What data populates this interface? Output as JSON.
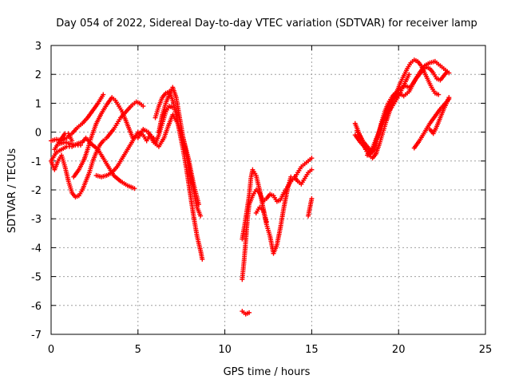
{
  "chart_data": {
    "type": "scatter",
    "title": "Day 054 of 2022, Sidereal Day-to-day VTEC variation (SDTVAR) for receiver lamp",
    "xlabel": "GPS time / hours",
    "ylabel": "SDTVAR / TECUs",
    "xlim": [
      0,
      25
    ],
    "ylim": [
      -7,
      3
    ],
    "xticks": [
      0,
      5,
      10,
      15,
      20,
      25
    ],
    "yticks": [
      3,
      2,
      1,
      0,
      -1,
      -2,
      -3,
      -4,
      -5,
      -6,
      -7
    ],
    "grid": true,
    "marker": "plus",
    "color": "#ff0000",
    "series": [
      {
        "points": [
          [
            0.0,
            -0.3
          ],
          [
            0.3,
            -0.25
          ],
          [
            0.6,
            -0.3
          ],
          [
            0.9,
            -0.2
          ],
          [
            1.2,
            -0.05
          ],
          [
            1.5,
            0.15
          ],
          [
            1.8,
            0.3
          ],
          [
            2.1,
            0.5
          ],
          [
            2.4,
            0.75
          ],
          [
            2.7,
            1.0
          ],
          [
            3.0,
            1.3
          ]
        ]
      },
      {
        "points": [
          [
            0.0,
            -1.0
          ],
          [
            0.3,
            -0.7
          ],
          [
            0.6,
            -0.6
          ],
          [
            0.9,
            -0.5
          ],
          [
            1.2,
            -0.5
          ],
          [
            1.5,
            -0.4
          ],
          [
            1.8,
            -0.35
          ],
          [
            2.0,
            -0.2
          ],
          [
            2.3,
            -0.4
          ],
          [
            2.7,
            -0.6
          ],
          [
            3.0,
            -0.9
          ],
          [
            3.3,
            -1.2
          ],
          [
            3.6,
            -1.5
          ],
          [
            4.0,
            -1.7
          ],
          [
            4.4,
            -1.85
          ],
          [
            4.8,
            -1.95
          ]
        ]
      },
      {
        "points": [
          [
            0.0,
            -1.0
          ],
          [
            0.2,
            -1.3
          ],
          [
            0.4,
            -1.0
          ],
          [
            0.6,
            -0.8
          ],
          [
            0.8,
            -1.2
          ],
          [
            1.0,
            -1.7
          ],
          [
            1.2,
            -2.1
          ],
          [
            1.4,
            -2.25
          ],
          [
            1.6,
            -2.2
          ],
          [
            1.8,
            -2.0
          ],
          [
            2.0,
            -1.7
          ],
          [
            2.2,
            -1.4
          ],
          [
            2.4,
            -1.0
          ],
          [
            2.6,
            -0.7
          ],
          [
            2.8,
            -0.45
          ],
          [
            3.0,
            -0.3
          ],
          [
            3.2,
            -0.2
          ],
          [
            3.4,
            -0.05
          ],
          [
            3.6,
            0.1
          ],
          [
            3.8,
            0.3
          ],
          [
            4.0,
            0.5
          ],
          [
            4.3,
            0.7
          ],
          [
            4.6,
            0.9
          ],
          [
            4.9,
            1.05
          ],
          [
            5.1,
            1.0
          ],
          [
            5.3,
            0.9
          ]
        ]
      },
      {
        "points": [
          [
            2.6,
            -1.5
          ],
          [
            2.9,
            -1.55
          ],
          [
            3.2,
            -1.5
          ],
          [
            3.5,
            -1.4
          ],
          [
            3.8,
            -1.2
          ],
          [
            4.1,
            -0.9
          ],
          [
            4.4,
            -0.6
          ],
          [
            4.7,
            -0.3
          ],
          [
            5.0,
            0.0
          ],
          [
            5.3,
            -0.1
          ],
          [
            5.5,
            -0.3
          ],
          [
            5.7,
            -0.1
          ],
          [
            5.9,
            -0.2
          ],
          [
            6.0,
            -0.4
          ],
          [
            6.2,
            -0.1
          ],
          [
            6.4,
            0.3
          ],
          [
            6.6,
            0.7
          ],
          [
            6.8,
            0.9
          ],
          [
            7.0,
            0.85
          ]
        ]
      },
      {
        "points": [
          [
            0.5,
            -0.4
          ],
          [
            0.8,
            -0.35
          ],
          [
            1.1,
            -0.4
          ],
          [
            1.4,
            -0.45
          ],
          [
            1.7,
            -0.45
          ]
        ]
      },
      {
        "points": [
          [
            0.2,
            -0.6
          ],
          [
            0.5,
            -0.3
          ],
          [
            0.8,
            -0.05
          ],
          [
            1.0,
            -0.05
          ],
          [
            1.2,
            -0.3
          ]
        ]
      },
      {
        "points": [
          [
            1.3,
            -1.55
          ],
          [
            1.6,
            -1.3
          ],
          [
            1.9,
            -0.95
          ],
          [
            2.1,
            -0.6
          ],
          [
            2.3,
            -0.2
          ],
          [
            2.6,
            0.3
          ],
          [
            2.9,
            0.65
          ],
          [
            3.2,
            0.95
          ],
          [
            3.5,
            1.2
          ],
          [
            3.7,
            1.1
          ],
          [
            3.9,
            0.9
          ],
          [
            4.1,
            0.7
          ],
          [
            4.3,
            0.4
          ],
          [
            4.5,
            0.1
          ],
          [
            4.7,
            -0.2
          ]
        ]
      },
      {
        "points": [
          [
            6.2,
            0.0
          ],
          [
            6.4,
            0.6
          ],
          [
            6.6,
            1.0
          ],
          [
            6.8,
            1.3
          ],
          [
            7.0,
            1.55
          ],
          [
            7.2,
            1.2
          ],
          [
            7.4,
            0.5
          ],
          [
            7.6,
            -0.2
          ],
          [
            7.8,
            -0.8
          ],
          [
            8.0,
            -1.4
          ],
          [
            8.2,
            -2.0
          ],
          [
            8.4,
            -2.6
          ],
          [
            8.6,
            -2.9
          ]
        ]
      },
      {
        "points": [
          [
            6.0,
            0.5
          ],
          [
            6.2,
            0.9
          ],
          [
            6.4,
            1.2
          ],
          [
            6.6,
            1.35
          ],
          [
            6.8,
            1.4
          ],
          [
            7.0,
            1.1
          ],
          [
            7.2,
            0.6
          ],
          [
            7.4,
            0.0
          ],
          [
            7.6,
            -0.6
          ],
          [
            7.8,
            -1.3
          ],
          [
            8.0,
            -2.1
          ],
          [
            8.2,
            -2.9
          ],
          [
            8.4,
            -3.6
          ],
          [
            8.6,
            -4.1
          ],
          [
            8.7,
            -4.4
          ]
        ]
      },
      {
        "points": [
          [
            5.0,
            -0.2
          ],
          [
            5.3,
            0.1
          ],
          [
            5.6,
            0.0
          ],
          [
            5.9,
            -0.35
          ],
          [
            6.2,
            -0.5
          ],
          [
            6.5,
            -0.2
          ],
          [
            6.8,
            0.3
          ],
          [
            7.0,
            0.6
          ],
          [
            7.3,
            0.3
          ],
          [
            7.6,
            -0.2
          ],
          [
            7.9,
            -0.9
          ],
          [
            8.2,
            -1.8
          ],
          [
            8.5,
            -2.5
          ]
        ]
      },
      {
        "points": [
          [
            11.0,
            -5.1
          ],
          [
            11.1,
            -4.5
          ],
          [
            11.2,
            -3.8
          ],
          [
            11.3,
            -3.0
          ],
          [
            11.4,
            -2.5
          ],
          [
            11.6,
            -2.2
          ],
          [
            11.8,
            -2.0
          ],
          [
            12.0,
            -2.1
          ],
          [
            12.2,
            -2.4
          ],
          [
            12.4,
            -2.3
          ],
          [
            12.6,
            -2.15
          ],
          [
            12.8,
            -2.2
          ],
          [
            13.0,
            -2.4
          ],
          [
            13.2,
            -2.35
          ],
          [
            13.4,
            -2.1
          ],
          [
            13.6,
            -1.9
          ],
          [
            13.8,
            -1.7
          ],
          [
            14.0,
            -1.6
          ],
          [
            14.2,
            -1.4
          ],
          [
            14.4,
            -1.2
          ],
          [
            14.6,
            -1.1
          ],
          [
            14.8,
            -1.0
          ],
          [
            15.0,
            -0.9
          ]
        ]
      },
      {
        "points": [
          [
            11.0,
            -3.7
          ],
          [
            11.2,
            -3.0
          ],
          [
            11.4,
            -2.2
          ],
          [
            11.5,
            -1.6
          ],
          [
            11.6,
            -1.3
          ],
          [
            11.8,
            -1.5
          ],
          [
            12.0,
            -2.0
          ],
          [
            12.2,
            -2.6
          ],
          [
            12.4,
            -3.2
          ],
          [
            12.6,
            -3.6
          ],
          [
            12.8,
            -4.2
          ],
          [
            13.0,
            -3.9
          ],
          [
            13.2,
            -3.3
          ],
          [
            13.4,
            -2.6
          ],
          [
            13.6,
            -2.0
          ],
          [
            13.8,
            -1.55
          ],
          [
            14.0,
            -1.55
          ],
          [
            14.2,
            -1.7
          ],
          [
            14.4,
            -1.8
          ],
          [
            14.6,
            -1.6
          ],
          [
            14.8,
            -1.4
          ],
          [
            15.0,
            -1.3
          ]
        ]
      },
      {
        "points": [
          [
            11.8,
            -2.8
          ],
          [
            12.0,
            -2.6
          ],
          [
            12.2,
            -2.7
          ],
          [
            12.4,
            -3.1
          ]
        ]
      },
      {
        "points": [
          [
            11.0,
            -6.2
          ],
          [
            11.2,
            -6.3
          ],
          [
            11.4,
            -6.25
          ]
        ]
      },
      {
        "points": [
          [
            14.8,
            -2.9
          ],
          [
            14.9,
            -2.6
          ],
          [
            15.0,
            -2.3
          ]
        ]
      },
      {
        "points": [
          [
            17.5,
            0.3
          ],
          [
            17.7,
            0.0
          ],
          [
            17.9,
            -0.3
          ],
          [
            18.1,
            -0.6
          ],
          [
            18.3,
            -0.8
          ],
          [
            18.5,
            -0.9
          ],
          [
            18.7,
            -0.75
          ],
          [
            18.9,
            -0.4
          ],
          [
            19.1,
            0.0
          ],
          [
            19.3,
            0.4
          ],
          [
            19.5,
            0.75
          ],
          [
            19.7,
            1.1
          ],
          [
            19.9,
            1.4
          ],
          [
            20.1,
            1.7
          ],
          [
            20.3,
            1.95
          ],
          [
            20.5,
            2.2
          ],
          [
            20.7,
            2.4
          ],
          [
            20.9,
            2.5
          ],
          [
            21.1,
            2.45
          ],
          [
            21.3,
            2.3
          ],
          [
            21.5,
            2.05
          ],
          [
            21.7,
            1.8
          ],
          [
            21.9,
            1.55
          ],
          [
            22.1,
            1.35
          ],
          [
            22.3,
            1.3
          ]
        ]
      },
      {
        "points": [
          [
            17.5,
            -0.1
          ],
          [
            17.8,
            -0.35
          ],
          [
            18.1,
            -0.55
          ],
          [
            18.4,
            -0.75
          ],
          [
            18.6,
            -0.6
          ],
          [
            18.8,
            -0.2
          ],
          [
            19.0,
            0.3
          ],
          [
            19.2,
            0.7
          ],
          [
            19.4,
            1.0
          ],
          [
            19.6,
            1.2
          ],
          [
            19.8,
            1.35
          ],
          [
            20.0,
            1.45
          ],
          [
            20.2,
            1.55
          ],
          [
            20.4,
            1.6
          ],
          [
            20.6,
            1.55
          ],
          [
            20.8,
            1.65
          ],
          [
            21.0,
            1.85
          ],
          [
            21.2,
            2.0
          ],
          [
            21.4,
            2.15
          ],
          [
            21.6,
            2.25
          ],
          [
            21.8,
            2.2
          ],
          [
            22.0,
            2.05
          ],
          [
            22.2,
            1.85
          ],
          [
            22.4,
            1.8
          ],
          [
            22.6,
            1.95
          ],
          [
            22.8,
            2.1
          ]
        ]
      },
      {
        "points": [
          [
            18.2,
            -0.8
          ],
          [
            18.5,
            -0.55
          ],
          [
            18.8,
            -0.1
          ],
          [
            19.1,
            0.4
          ],
          [
            19.4,
            0.85
          ],
          [
            19.7,
            1.2
          ],
          [
            20.0,
            1.35
          ],
          [
            20.3,
            1.25
          ],
          [
            20.6,
            1.4
          ],
          [
            20.9,
            1.75
          ],
          [
            21.2,
            2.05
          ],
          [
            21.5,
            2.3
          ],
          [
            21.8,
            2.4
          ],
          [
            22.1,
            2.45
          ],
          [
            22.4,
            2.3
          ],
          [
            22.7,
            2.15
          ],
          [
            22.9,
            2.05
          ]
        ]
      },
      {
        "points": [
          [
            20.9,
            -0.55
          ],
          [
            21.2,
            -0.3
          ],
          [
            21.5,
            0.0
          ],
          [
            21.8,
            0.3
          ],
          [
            22.1,
            0.55
          ],
          [
            22.4,
            0.8
          ],
          [
            22.7,
            1.0
          ],
          [
            22.9,
            1.15
          ]
        ]
      },
      {
        "points": [
          [
            21.8,
            0.1
          ],
          [
            22.0,
            -0.05
          ],
          [
            22.2,
            0.2
          ],
          [
            22.4,
            0.5
          ],
          [
            22.6,
            0.8
          ],
          [
            22.8,
            1.05
          ],
          [
            22.9,
            1.2
          ]
        ]
      },
      {
        "points": [
          [
            17.6,
            0.05
          ],
          [
            17.8,
            -0.15
          ],
          [
            18.0,
            -0.35
          ],
          [
            18.2,
            -0.5
          ],
          [
            18.4,
            -0.65
          ],
          [
            18.6,
            -0.5
          ],
          [
            18.8,
            -0.15
          ],
          [
            19.0,
            0.2
          ],
          [
            19.2,
            0.5
          ],
          [
            19.4,
            0.7
          ],
          [
            19.6,
            0.85
          ],
          [
            19.8,
            1.05
          ],
          [
            20.0,
            1.25
          ],
          [
            20.2,
            1.5
          ],
          [
            20.4,
            1.75
          ],
          [
            20.6,
            2.0
          ]
        ]
      }
    ]
  }
}
